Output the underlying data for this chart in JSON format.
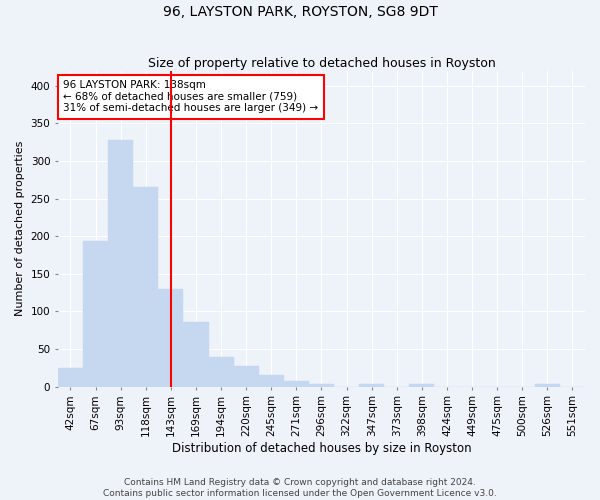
{
  "title": "96, LAYSTON PARK, ROYSTON, SG8 9DT",
  "subtitle": "Size of property relative to detached houses in Royston",
  "xlabel": "Distribution of detached houses by size in Royston",
  "ylabel": "Number of detached properties",
  "footer_line1": "Contains HM Land Registry data © Crown copyright and database right 2024.",
  "footer_line2": "Contains public sector information licensed under the Open Government Licence v3.0.",
  "bin_labels": [
    "42sqm",
    "67sqm",
    "93sqm",
    "118sqm",
    "143sqm",
    "169sqm",
    "194sqm",
    "220sqm",
    "245sqm",
    "271sqm",
    "296sqm",
    "322sqm",
    "347sqm",
    "373sqm",
    "398sqm",
    "424sqm",
    "449sqm",
    "475sqm",
    "500sqm",
    "526sqm",
    "551sqm"
  ],
  "bar_values": [
    25,
    194,
    328,
    265,
    130,
    86,
    40,
    27,
    16,
    7,
    4,
    0,
    4,
    0,
    3,
    0,
    0,
    0,
    0,
    3,
    0
  ],
  "bar_color": "#c5d8f0",
  "bar_edgecolor": "#c5d8f0",
  "vline_index": 4,
  "vline_color": "red",
  "annotation_text": "96 LAYSTON PARK: 138sqm\n← 68% of detached houses are smaller (759)\n31% of semi-detached houses are larger (349) →",
  "annotation_box_edgecolor": "red",
  "annotation_box_facecolor": "white",
  "ylim": [
    0,
    420
  ],
  "yticks": [
    0,
    50,
    100,
    150,
    200,
    250,
    300,
    350,
    400
  ],
  "background_color": "#eef2f9",
  "grid_color": "white",
  "title_fontsize": 10,
  "subtitle_fontsize": 9,
  "xlabel_fontsize": 8.5,
  "ylabel_fontsize": 8,
  "tick_fontsize": 7.5,
  "annotation_fontsize": 7.5,
  "footer_fontsize": 6.5
}
